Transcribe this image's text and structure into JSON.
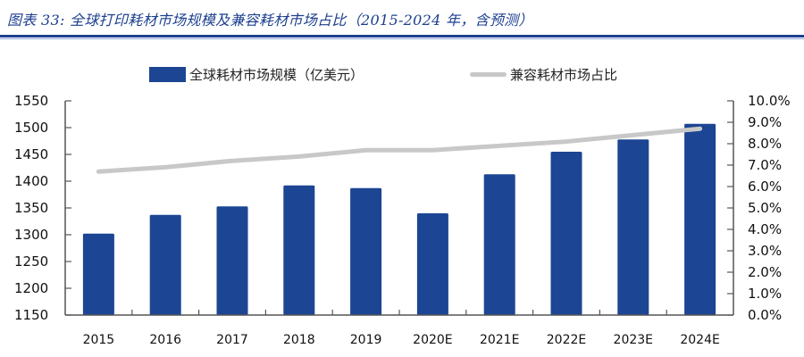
{
  "header": {
    "title": "图表 33:  全球打印耗材市场规模及兼容耗材市场占比（2015-2024 年，含预测）"
  },
  "colors": {
    "title": "#1c3f8f",
    "bar": "#1c4593",
    "line": "#c8c8c8",
    "axis": "#555555"
  },
  "legend": {
    "bar_label": "全球耗材市场规模（亿美元）",
    "line_label": "兼容耗材市场占比"
  },
  "chart_data": {
    "type": "bar",
    "title": "全球打印耗材市场规模及兼容耗材市场占比（2015-2024 年，含预测）",
    "xlabel": "",
    "ylabel": "",
    "categories": [
      "2015",
      "2016",
      "2017",
      "2018",
      "2019",
      "2020E",
      "2021E",
      "2022E",
      "2023E",
      "2024E"
    ],
    "series": [
      {
        "name": "全球耗材市场规模（亿美元）",
        "type": "bar",
        "axis": "left",
        "values": [
          1302,
          1337,
          1353,
          1392,
          1387,
          1340,
          1413,
          1455,
          1478,
          1507
        ]
      },
      {
        "name": "兼容耗材市场占比",
        "type": "line",
        "axis": "right",
        "values": [
          6.7,
          6.9,
          7.2,
          7.4,
          7.7,
          7.7,
          7.9,
          8.1,
          8.4,
          8.7
        ]
      }
    ],
    "ylim": [
      1150,
      1550
    ],
    "y_ticks": [
      "1150",
      "1200",
      "1250",
      "1300",
      "1350",
      "1400",
      "1450",
      "1500",
      "1550"
    ],
    "y2lim": [
      0,
      10
    ],
    "y2_ticks": [
      "0.0%",
      "1.0%",
      "2.0%",
      "3.0%",
      "4.0%",
      "5.0%",
      "6.0%",
      "7.0%",
      "8.0%",
      "9.0%",
      "10.0%"
    ],
    "grid": false,
    "legend_position": "top"
  }
}
